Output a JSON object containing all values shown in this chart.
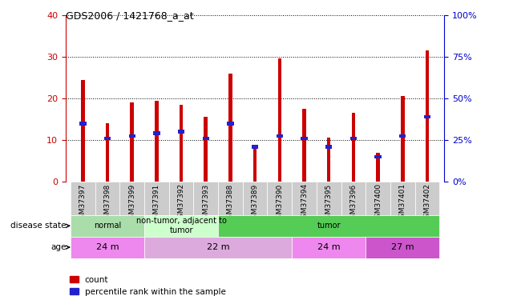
{
  "title": "GDS2006 / 1421768_a_at",
  "samples": [
    "GSM37397",
    "GSM37398",
    "GSM37399",
    "GSM37391",
    "GSM37392",
    "GSM37393",
    "GSM37388",
    "GSM37389",
    "GSM37390",
    "GSM37394",
    "GSM37395",
    "GSM37396",
    "GSM37400",
    "GSM37401",
    "GSM37402"
  ],
  "counts": [
    24.5,
    14.0,
    19.0,
    19.5,
    18.5,
    15.5,
    26.0,
    8.5,
    29.5,
    17.5,
    10.5,
    16.5,
    7.0,
    20.5,
    31.5
  ],
  "percentile_ranks_pct": [
    35,
    26,
    27.5,
    29,
    30,
    26,
    35,
    21,
    27.5,
    26,
    21,
    26,
    15,
    27.5,
    39
  ],
  "ylim_left": [
    0,
    40
  ],
  "ylim_right": [
    0,
    100
  ],
  "yticks_left": [
    0,
    10,
    20,
    30,
    40
  ],
  "yticks_right": [
    0,
    25,
    50,
    75,
    100
  ],
  "bar_color": "#cc0000",
  "percentile_color": "#2222cc",
  "disease_states": [
    {
      "label": "normal",
      "start": 0,
      "end": 3,
      "color": "#aaddaa"
    },
    {
      "label": "non-tumor, adjacent to\ntumor",
      "start": 3,
      "end": 6,
      "color": "#ccffcc"
    },
    {
      "label": "tumor",
      "start": 6,
      "end": 15,
      "color": "#55cc55"
    }
  ],
  "ages": [
    {
      "label": "24 m",
      "start": 0,
      "end": 3,
      "color": "#ee88ee"
    },
    {
      "label": "22 m",
      "start": 3,
      "end": 9,
      "color": "#ddaadd"
    },
    {
      "label": "24 m",
      "start": 9,
      "end": 12,
      "color": "#ee88ee"
    },
    {
      "label": "27 m",
      "start": 12,
      "end": 15,
      "color": "#cc55cc"
    }
  ],
  "left_axis_color": "#cc0000",
  "right_axis_color": "#0000cc",
  "bar_width": 0.15,
  "tick_cell_color": "#cccccc",
  "legend_items": [
    {
      "color": "#cc0000",
      "label": "count"
    },
    {
      "color": "#2222cc",
      "label": "percentile rank within the sample"
    }
  ]
}
